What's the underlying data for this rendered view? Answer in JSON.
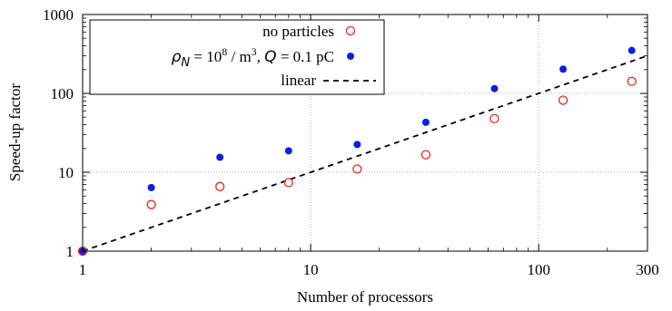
{
  "chart_data": {
    "type": "scatter",
    "xlabel": "Number of processors",
    "ylabel": "Speed-up factor",
    "x_scale": "log",
    "y_scale": "log",
    "xlim": [
      1,
      300
    ],
    "ylim": [
      1,
      1000
    ],
    "x_ticks": [
      {
        "value": 1,
        "label": "1"
      },
      {
        "value": 10,
        "label": "10"
      },
      {
        "value": 100,
        "label": "100"
      },
      {
        "value": 300,
        "label": "300"
      }
    ],
    "y_ticks": [
      {
        "value": 1,
        "label": "1"
      },
      {
        "value": 10,
        "label": "10"
      },
      {
        "value": 100,
        "label": "100"
      },
      {
        "value": 1000,
        "label": "1000"
      }
    ],
    "grid": true,
    "legend_position": "top-left",
    "series": [
      {
        "name": "no particles",
        "marker": "open-circle",
        "color": "#e8251c",
        "x": [
          1,
          2,
          4,
          8,
          16,
          32,
          64,
          128,
          256
        ],
        "y": [
          1.0,
          3.9,
          6.6,
          7.4,
          11.0,
          16.7,
          48.0,
          82.0,
          142.0
        ]
      },
      {
        "name_parts": {
          "rho": "ρ",
          "rho_sub": "N",
          "eq1": " = 10",
          "exp1": "8",
          "unit1": " / m",
          "exp2": "3",
          "sep": ", ",
          "q": "Q",
          "eq2": " = 0.1 pC"
        },
        "marker": "filled-circle",
        "color": "#0a1ee6",
        "x": [
          1,
          2,
          4,
          8,
          16,
          32,
          64,
          128,
          256
        ],
        "y": [
          1.0,
          6.4,
          15.5,
          18.7,
          22.5,
          43.0,
          115.0,
          203.0,
          350.0
        ]
      },
      {
        "name": "linear",
        "type": "line",
        "style": "dashed",
        "color": "#000000",
        "x": [
          1,
          300
        ],
        "y": [
          1,
          300
        ]
      }
    ]
  }
}
